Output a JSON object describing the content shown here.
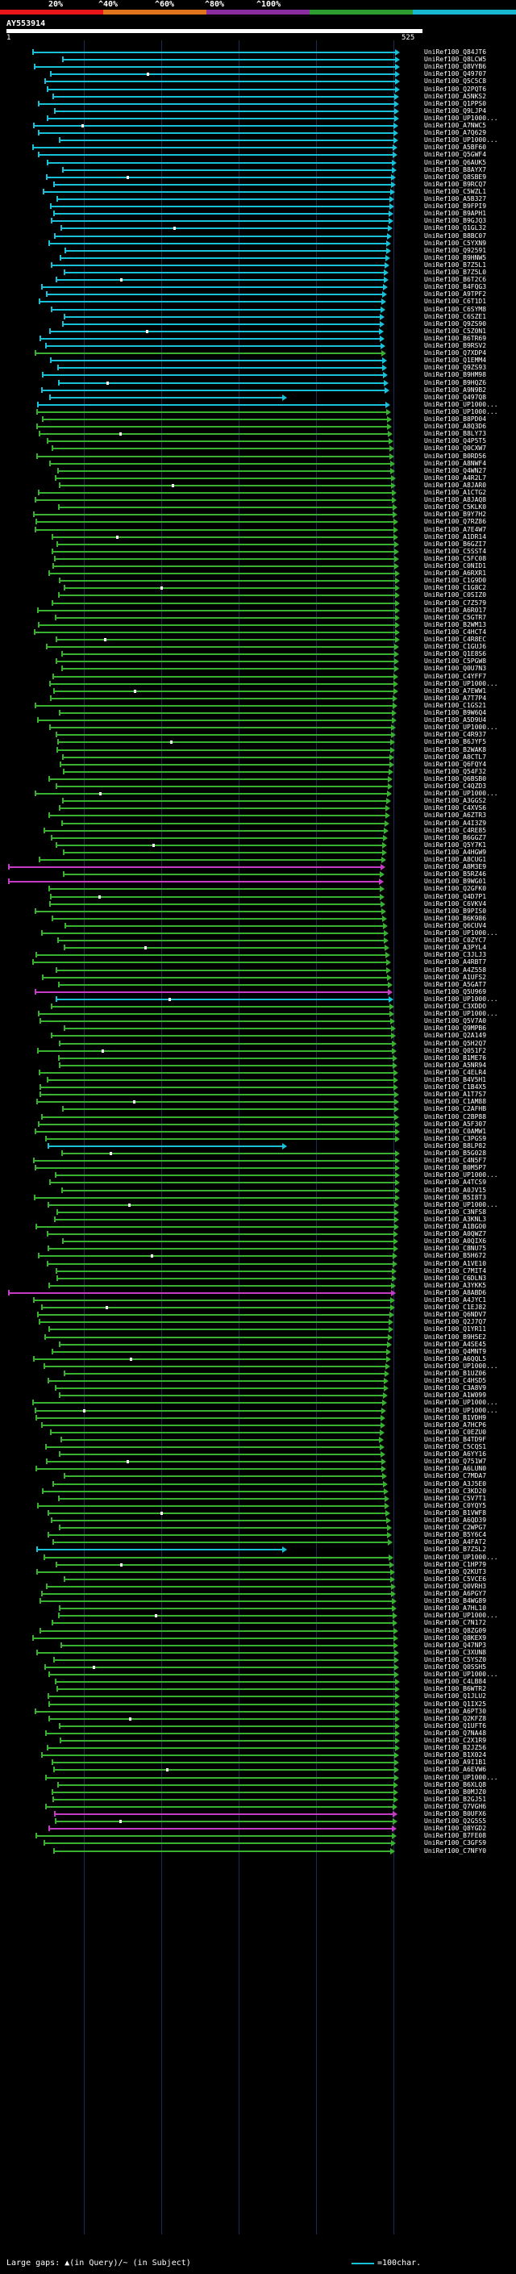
{
  "scale": {
    "labels": [
      "20%",
      "^40%",
      "^60%",
      "^80%",
      "^100%"
    ],
    "colors": [
      "#e8161b",
      "#e0741c",
      "#8a2da0",
      "#2c9c30",
      "#18b8d0"
    ]
  },
  "query": {
    "id": "AY553914",
    "start": "1",
    "end": "525"
  },
  "colors": {
    "cyan": "#18c0d8",
    "green": "#38b030",
    "magenta": "#c43cc4",
    "grid": "#1e2a5a"
  },
  "hits": [
    {
      "label": "UniRef100_Q84JT6",
      "c": "cyan"
    },
    {
      "label": "UniRef100_Q8LCW5",
      "c": "cyan"
    },
    {
      "label": "UniRef100_Q8VYB6",
      "c": "cyan"
    },
    {
      "label": "UniRef100_Q49707",
      "c": "cyan"
    },
    {
      "label": "UniRef100_Q5C5C8",
      "c": "cyan"
    },
    {
      "label": "UniRef100_Q2PQT6",
      "c": "cyan"
    },
    {
      "label": "UniRef100_A5NKS2",
      "c": "cyan"
    },
    {
      "label": "UniRef100_Q1PPS0",
      "c": "cyan"
    },
    {
      "label": "UniRef100_Q9LJP4",
      "c": "cyan"
    },
    {
      "label": "UniRef100_UP1000...",
      "c": "cyan"
    },
    {
      "label": "UniRef100_A7NWC5",
      "c": "cyan"
    },
    {
      "label": "UniRef100_A7Q629",
      "c": "cyan"
    },
    {
      "label": "UniRef100_UP1000...",
      "c": "cyan"
    },
    {
      "label": "UniRef100_A5BF60",
      "c": "cyan"
    },
    {
      "label": "UniRef100_Q5GWF4",
      "c": "cyan"
    },
    {
      "label": "UniRef100_Q6AUK5",
      "c": "cyan"
    },
    {
      "label": "UniRef100_B8AYX7",
      "c": "cyan"
    },
    {
      "label": "UniRef100_Q8SBE9",
      "c": "cyan"
    },
    {
      "label": "UniRef100_B9RCQ7",
      "c": "cyan"
    },
    {
      "label": "UniRef100_C5WZL1",
      "c": "cyan"
    },
    {
      "label": "UniRef100_A5B327",
      "c": "cyan"
    },
    {
      "label": "UniRef100_B9FPI9",
      "c": "cyan"
    },
    {
      "label": "UniRef100_B9APH1",
      "c": "cyan"
    },
    {
      "label": "UniRef100_B9GJQ3",
      "c": "cyan"
    },
    {
      "label": "UniRef100_Q1GL32",
      "c": "cyan"
    },
    {
      "label": "UniRef100_B8BC07",
      "c": "cyan"
    },
    {
      "label": "UniRef100_C5YXN9",
      "c": "cyan"
    },
    {
      "label": "UniRef100_Q92591",
      "c": "cyan"
    },
    {
      "label": "UniRef100_B9HNW5",
      "c": "cyan"
    },
    {
      "label": "UniRef100_B7Z5L1",
      "c": "cyan"
    },
    {
      "label": "UniRef100_B7Z5L0",
      "c": "cyan"
    },
    {
      "label": "UniRef100_B6T2C6",
      "c": "cyan"
    },
    {
      "label": "UniRef100_B4FQG3",
      "c": "cyan"
    },
    {
      "label": "UniRef100_A9TPF2",
      "c": "cyan"
    },
    {
      "label": "UniRef100_C6T1D1",
      "c": "cyan"
    },
    {
      "label": "UniRef100_C6SYM8",
      "c": "cyan"
    },
    {
      "label": "UniRef100_C6SZE1",
      "c": "cyan"
    },
    {
      "label": "UniRef100_Q9ZS90",
      "c": "cyan"
    },
    {
      "label": "UniRef100_C5Z0N1",
      "c": "cyan"
    },
    {
      "label": "UniRef100_B6TR69",
      "c": "cyan"
    },
    {
      "label": "UniRef100_B9RSV2",
      "c": "cyan"
    },
    {
      "label": "UniRef100_Q7XDP4",
      "c": "green"
    },
    {
      "label": "UniRef100_Q1EMM4",
      "c": "cyan"
    },
    {
      "label": "UniRef100_Q9ZS93",
      "c": "cyan"
    },
    {
      "label": "UniRef100_B9HM98",
      "c": "cyan"
    },
    {
      "label": "UniRef100_B9HQZ6",
      "c": "cyan"
    },
    {
      "label": "UniRef100_A9N9B2",
      "c": "cyan"
    },
    {
      "label": "UniRef100_Q497Q8",
      "c": "cyan"
    },
    {
      "label": "UniRef100_UP1000...",
      "c": "cyan"
    },
    {
      "label": "UniRef100_UP1000...",
      "c": "green"
    },
    {
      "label": "UniRef100_B8PD04",
      "c": "green"
    },
    {
      "label": "UniRef100_A8Q3D6",
      "c": "green"
    },
    {
      "label": "UniRef100_B8LY73",
      "c": "green"
    },
    {
      "label": "UniRef100_Q4P5T5",
      "c": "green"
    },
    {
      "label": "UniRef100_Q0CXW7",
      "c": "green"
    },
    {
      "label": "UniRef100_B0RD56",
      "c": "green"
    },
    {
      "label": "UniRef100_A8NWF4",
      "c": "green"
    },
    {
      "label": "UniRef100_Q4WN27",
      "c": "green"
    },
    {
      "label": "UniRef100_A4R2L7",
      "c": "green"
    },
    {
      "label": "UniRef100_A8JAR0",
      "c": "green"
    },
    {
      "label": "UniRef100_A1CTG2",
      "c": "green"
    },
    {
      "label": "UniRef100_A8JAQ8",
      "c": "green"
    },
    {
      "label": "UniRef100_C5KLK0",
      "c": "green"
    },
    {
      "label": "UniRef100_B9Y7H2",
      "c": "green"
    },
    {
      "label": "UniRef100_Q7RZ86",
      "c": "green"
    },
    {
      "label": "UniRef100_A7E4W7",
      "c": "green"
    },
    {
      "label": "UniRef100_A1DR14",
      "c": "green"
    },
    {
      "label": "UniRef100_B6GZI7",
      "c": "green"
    },
    {
      "label": "UniRef100_C5SST4",
      "c": "green"
    },
    {
      "label": "UniRef100_C5FC08",
      "c": "green"
    },
    {
      "label": "UniRef100_C0NID1",
      "c": "green"
    },
    {
      "label": "UniRef100_A6RXR1",
      "c": "green"
    },
    {
      "label": "UniRef100_C1G9D0",
      "c": "green"
    },
    {
      "label": "UniRef100_C1G8C2",
      "c": "green"
    },
    {
      "label": "UniRef100_C0SIZ0",
      "c": "green"
    },
    {
      "label": "UniRef100_C7Z579",
      "c": "green"
    },
    {
      "label": "UniRef100_A6R017",
      "c": "green"
    },
    {
      "label": "UniRef100_C5GTR7",
      "c": "green"
    },
    {
      "label": "UniRef100_B2WM13",
      "c": "green"
    },
    {
      "label": "UniRef100_C4HCT4",
      "c": "green"
    },
    {
      "label": "UniRef100_C4R8EC",
      "c": "green"
    },
    {
      "label": "UniRef100_C1GUJ6",
      "c": "green"
    },
    {
      "label": "UniRef100_Q1E8S6",
      "c": "green"
    },
    {
      "label": "UniRef100_C5PGW8",
      "c": "green"
    },
    {
      "label": "UniRef100_Q0U7N3",
      "c": "green"
    },
    {
      "label": "UniRef100_C4YFF7",
      "c": "green"
    },
    {
      "label": "UniRef100_UP1000...",
      "c": "green"
    },
    {
      "label": "UniRef100_A7EWW1",
      "c": "green"
    },
    {
      "label": "UniRef100_A7T7P4",
      "c": "green"
    },
    {
      "label": "UniRef100_C1GS21",
      "c": "green"
    },
    {
      "label": "UniRef100_B9W6Q4",
      "c": "green"
    },
    {
      "label": "UniRef100_A5D9U4",
      "c": "green"
    },
    {
      "label": "UniRef100_UP1000...",
      "c": "green"
    },
    {
      "label": "UniRef100_C4R937",
      "c": "green"
    },
    {
      "label": "UniRef100_B6JYF5",
      "c": "green"
    },
    {
      "label": "UniRef100_B2WAK8",
      "c": "green"
    },
    {
      "label": "UniRef100_A8CTL7",
      "c": "green"
    },
    {
      "label": "UniRef100_Q6FQY4",
      "c": "green"
    },
    {
      "label": "UniRef100_Q54F32",
      "c": "green"
    },
    {
      "label": "UniRef100_Q6BSB0",
      "c": "green"
    },
    {
      "label": "UniRef100_C4QZD3",
      "c": "green"
    },
    {
      "label": "UniRef100_UP1000...",
      "c": "green"
    },
    {
      "label": "UniRef100_A3GGS2",
      "c": "green"
    },
    {
      "label": "UniRef100_C4XVS6",
      "c": "green"
    },
    {
      "label": "UniRef100_A6ZTR3",
      "c": "green"
    },
    {
      "label": "UniRef100_A4I3Z9",
      "c": "green"
    },
    {
      "label": "UniRef100_C4RE85",
      "c": "green"
    },
    {
      "label": "UniRef100_B6GGZ7",
      "c": "green"
    },
    {
      "label": "UniRef100_Q5Y7K1",
      "c": "green"
    },
    {
      "label": "UniRef100_A4HGW9",
      "c": "green"
    },
    {
      "label": "UniRef100_A8CUG1",
      "c": "green"
    },
    {
      "label": "UniRef100_A8M3E9",
      "c": "magenta"
    },
    {
      "label": "UniRef100_B5RZ46",
      "c": "green"
    },
    {
      "label": "UniRef100_B9WG01",
      "c": "magenta"
    },
    {
      "label": "UniRef100_Q2GFK0",
      "c": "green"
    },
    {
      "label": "UniRef100_Q4D7P1",
      "c": "green"
    },
    {
      "label": "UniRef100_C6VKV4",
      "c": "green"
    },
    {
      "label": "UniRef100_B9PIS0",
      "c": "green"
    },
    {
      "label": "UniRef100_B6K986",
      "c": "green"
    },
    {
      "label": "UniRef100_Q6CUV4",
      "c": "green"
    },
    {
      "label": "UniRef100_UP1000...",
      "c": "green"
    },
    {
      "label": "UniRef100_C0ZYC7",
      "c": "green"
    },
    {
      "label": "UniRef100_A3PYL4",
      "c": "green"
    },
    {
      "label": "UniRef100_C3JLJ3",
      "c": "green"
    },
    {
      "label": "UniRef100_A4RBT7",
      "c": "green"
    },
    {
      "label": "UniRef100_A4Z558",
      "c": "green"
    },
    {
      "label": "UniRef100_A1UFS2",
      "c": "green"
    },
    {
      "label": "UniRef100_A5GAT7",
      "c": "green"
    },
    {
      "label": "UniRef100_Q5U969",
      "c": "magenta"
    },
    {
      "label": "UniRef100_UP1000...",
      "c": "cyan"
    },
    {
      "label": "UniRef100_C3XDDO",
      "c": "green"
    },
    {
      "label": "UniRef100_UP1000...",
      "c": "green"
    },
    {
      "label": "UniRef100_Q5V7A0",
      "c": "green"
    },
    {
      "label": "UniRef100_Q9MPB6",
      "c": "green"
    },
    {
      "label": "UniRef100_Q2A149",
      "c": "green"
    },
    {
      "label": "UniRef100_Q5H2Q7",
      "c": "green"
    },
    {
      "label": "UniRef100_Q051F2",
      "c": "green"
    },
    {
      "label": "UniRef100_B1ME76",
      "c": "green"
    },
    {
      "label": "UniRef100_A5NR94",
      "c": "green"
    },
    {
      "label": "UniRef100_C4ELR4",
      "c": "green"
    },
    {
      "label": "UniRef100_B4V5H1",
      "c": "green"
    },
    {
      "label": "UniRef100_C1B4X5",
      "c": "green"
    },
    {
      "label": "UniRef100_A1T7S7",
      "c": "green"
    },
    {
      "label": "UniRef100_C1AM88",
      "c": "green"
    },
    {
      "label": "UniRef100_C2AFHB",
      "c": "green"
    },
    {
      "label": "UniRef100_C2BP88",
      "c": "green"
    },
    {
      "label": "UniRef100_A5F307",
      "c": "green"
    },
    {
      "label": "UniRef100_C0AMW1",
      "c": "green"
    },
    {
      "label": "UniRef100_C3PGS9",
      "c": "green"
    },
    {
      "label": "UniRef100_B8LP82",
      "c": "cyan"
    },
    {
      "label": "UniRef100_B5G028",
      "c": "green"
    },
    {
      "label": "UniRef100_C4N5F7",
      "c": "green"
    },
    {
      "label": "UniRef100_B0M5P7",
      "c": "green"
    },
    {
      "label": "UniRef100_UP1000...",
      "c": "green"
    },
    {
      "label": "UniRef100_A4TCS9",
      "c": "green"
    },
    {
      "label": "UniRef100_A0JV15",
      "c": "green"
    },
    {
      "label": "UniRef100_B5I8T3",
      "c": "green"
    },
    {
      "label": "UniRef100_UP1000...",
      "c": "green"
    },
    {
      "label": "UniRef100_C3NFS8",
      "c": "green"
    },
    {
      "label": "UniRef100_A3KNL3",
      "c": "green"
    },
    {
      "label": "UniRef100_A1BGO0",
      "c": "green"
    },
    {
      "label": "UniRef100_A0QWZ7",
      "c": "green"
    },
    {
      "label": "UniRef100_A0QIX6",
      "c": "green"
    },
    {
      "label": "UniRef100_C8NU75",
      "c": "green"
    },
    {
      "label": "UniRef100_B5H672",
      "c": "green"
    },
    {
      "label": "UniRef100_A1VE10",
      "c": "green"
    },
    {
      "label": "UniRef100_C7MIT4",
      "c": "green"
    },
    {
      "label": "UniRef100_C6DLN3",
      "c": "green"
    },
    {
      "label": "UniRef100_A3YKK5",
      "c": "green"
    },
    {
      "label": "UniRef100_A8ABD6",
      "c": "magenta"
    },
    {
      "label": "UniRef100_A4JYC1",
      "c": "green"
    },
    {
      "label": "UniRef100_C1EJ82",
      "c": "green"
    },
    {
      "label": "UniRef100_Q6NDV7",
      "c": "green"
    },
    {
      "label": "UniRef100_Q2J7Q7",
      "c": "green"
    },
    {
      "label": "UniRef100_Q1YR11",
      "c": "green"
    },
    {
      "label": "UniRef100_B9H5E2",
      "c": "green"
    },
    {
      "label": "UniRef100_A4SE45",
      "c": "green"
    },
    {
      "label": "UniRef100_Q4MNT9",
      "c": "green"
    },
    {
      "label": "UniRef100_A6QQL5",
      "c": "green"
    },
    {
      "label": "UniRef100_UP1000...",
      "c": "green"
    },
    {
      "label": "UniRef100_B1UZ06",
      "c": "green"
    },
    {
      "label": "UniRef100_C4HSD5",
      "c": "green"
    },
    {
      "label": "UniRef100_C3A8V9",
      "c": "green"
    },
    {
      "label": "UniRef100_A1W099",
      "c": "green"
    },
    {
      "label": "UniRef100_UP1000...",
      "c": "green"
    },
    {
      "label": "UniRef100_UP1000...",
      "c": "green"
    },
    {
      "label": "UniRef100_B1VDH9",
      "c": "green"
    },
    {
      "label": "UniRef100_A7HCP6",
      "c": "green"
    },
    {
      "label": "UniRef100_C0EZU0",
      "c": "green"
    },
    {
      "label": "UniRef100_B4TD9F",
      "c": "green"
    },
    {
      "label": "UniRef100_C5CQS1",
      "c": "green"
    },
    {
      "label": "UniRef100_A6YY16",
      "c": "green"
    },
    {
      "label": "UniRef100_Q751W7",
      "c": "green"
    },
    {
      "label": "UniRef100_A6LUN0",
      "c": "green"
    },
    {
      "label": "UniRef100_C7MDA7",
      "c": "green"
    },
    {
      "label": "UniRef100_A3J5E0",
      "c": "green"
    },
    {
      "label": "UniRef100_C3KD20",
      "c": "green"
    },
    {
      "label": "UniRef100_C5V7T1",
      "c": "green"
    },
    {
      "label": "UniRef100_C0YQY5",
      "c": "green"
    },
    {
      "label": "UniRef100_B1VWF8",
      "c": "green"
    },
    {
      "label": "UniRef100_A6QD39",
      "c": "green"
    },
    {
      "label": "UniRef100_C2WPG7",
      "c": "green"
    },
    {
      "label": "UniRef100_B5Y6C4",
      "c": "green"
    },
    {
      "label": "UniRef100_A4FAT2",
      "c": "green"
    },
    {
      "label": "UniRef100_B7Z5L2",
      "c": "cyan"
    },
    {
      "label": "UniRef100_UP1000...",
      "c": "green"
    },
    {
      "label": "UniRef100_C1HP79",
      "c": "green"
    },
    {
      "label": "UniRef100_Q2KUT3",
      "c": "green"
    },
    {
      "label": "UniRef100_C5VCE6",
      "c": "green"
    },
    {
      "label": "UniRef100_Q0VRH3",
      "c": "green"
    },
    {
      "label": "UniRef100_A6PGY7",
      "c": "green"
    },
    {
      "label": "UniRef100_B4WG89",
      "c": "green"
    },
    {
      "label": "UniRef100_A7HL10",
      "c": "green"
    },
    {
      "label": "UniRef100_UP1000...",
      "c": "green"
    },
    {
      "label": "UniRef100_C7N172",
      "c": "green"
    },
    {
      "label": "UniRef100_Q8ZG09",
      "c": "green"
    },
    {
      "label": "UniRef100_Q8KEX9",
      "c": "green"
    },
    {
      "label": "UniRef100_Q47NP3",
      "c": "green"
    },
    {
      "label": "UniRef100_C3XUN8",
      "c": "green"
    },
    {
      "label": "UniRef100_C5YSZ0",
      "c": "green"
    },
    {
      "label": "UniRef100_Q0SSH5",
      "c": "green"
    },
    {
      "label": "UniRef100_UP1000...",
      "c": "green"
    },
    {
      "label": "UniRef100_C4LB84",
      "c": "green"
    },
    {
      "label": "UniRef100_B6WTR2",
      "c": "green"
    },
    {
      "label": "UniRef100_Q1JLU2",
      "c": "green"
    },
    {
      "label": "UniRef100_Q1IX25",
      "c": "green"
    },
    {
      "label": "UniRef100_A6PT30",
      "c": "green"
    },
    {
      "label": "UniRef100_Q2KFZ8",
      "c": "green"
    },
    {
      "label": "UniRef100_Q1UFT6",
      "c": "green"
    },
    {
      "label": "UniRef100_Q7NA48",
      "c": "green"
    },
    {
      "label": "UniRef100_C2X1R9",
      "c": "green"
    },
    {
      "label": "UniRef100_B2JZ56",
      "c": "green"
    },
    {
      "label": "UniRef100_B1X024",
      "c": "green"
    },
    {
      "label": "UniRef100_A9I1B1",
      "c": "green"
    },
    {
      "label": "UniRef100_A6EVW6",
      "c": "green"
    },
    {
      "label": "UniRef100_UP1000...",
      "c": "green"
    },
    {
      "label": "UniRef100_B6XLQ8",
      "c": "green"
    },
    {
      "label": "UniRef100_B0MJZ0",
      "c": "green"
    },
    {
      "label": "UniRef100_B2GJ51",
      "c": "green"
    },
    {
      "label": "UniRef100_Q7VGH6",
      "c": "green"
    },
    {
      "label": "UniRef100_B0UFX6",
      "c": "magenta"
    },
    {
      "label": "UniRef100_Q2G5S5",
      "c": "green"
    },
    {
      "label": "UniRef100_Q8YGD2",
      "c": "magenta"
    },
    {
      "label": "UniRef100_B7FE08",
      "c": "green"
    },
    {
      "label": "UniRef100_C3GFS9",
      "c": "green"
    },
    {
      "label": "UniRef100_C7NFY0",
      "c": "green"
    }
  ],
  "footer": {
    "gap_legend": "Large gaps: ▲(in Query)/~ (in Subject)",
    "scale_legend": "=100char."
  }
}
